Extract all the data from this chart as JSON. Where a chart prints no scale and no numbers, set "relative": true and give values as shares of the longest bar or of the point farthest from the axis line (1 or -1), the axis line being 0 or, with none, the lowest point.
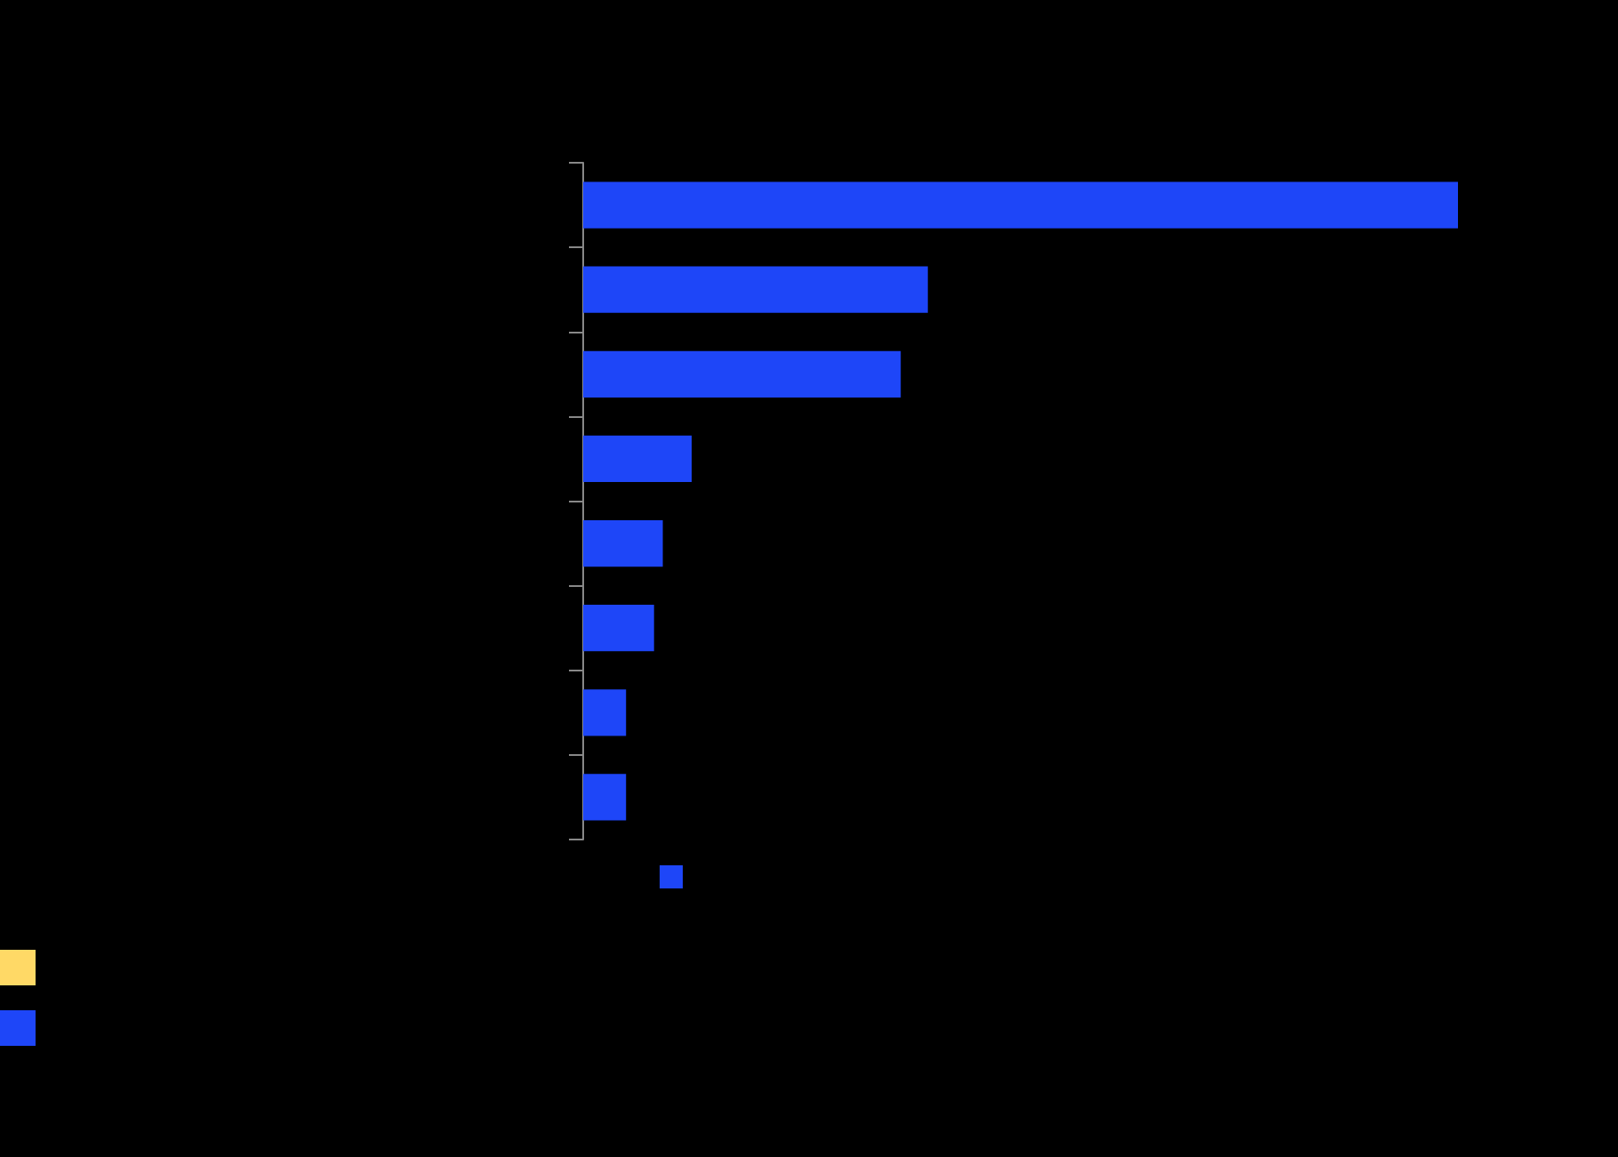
{
  "chart_data": {
    "type": "bar",
    "orientation": "horizontal",
    "relative": true,
    "categories": [
      null,
      null,
      null,
      null,
      null,
      null,
      null,
      null
    ],
    "values": [
      1,
      0.394,
      0.363,
      0.124,
      0.091,
      0.081,
      0.049,
      0.049
    ],
    "color": "#1e46f8"
  }
}
